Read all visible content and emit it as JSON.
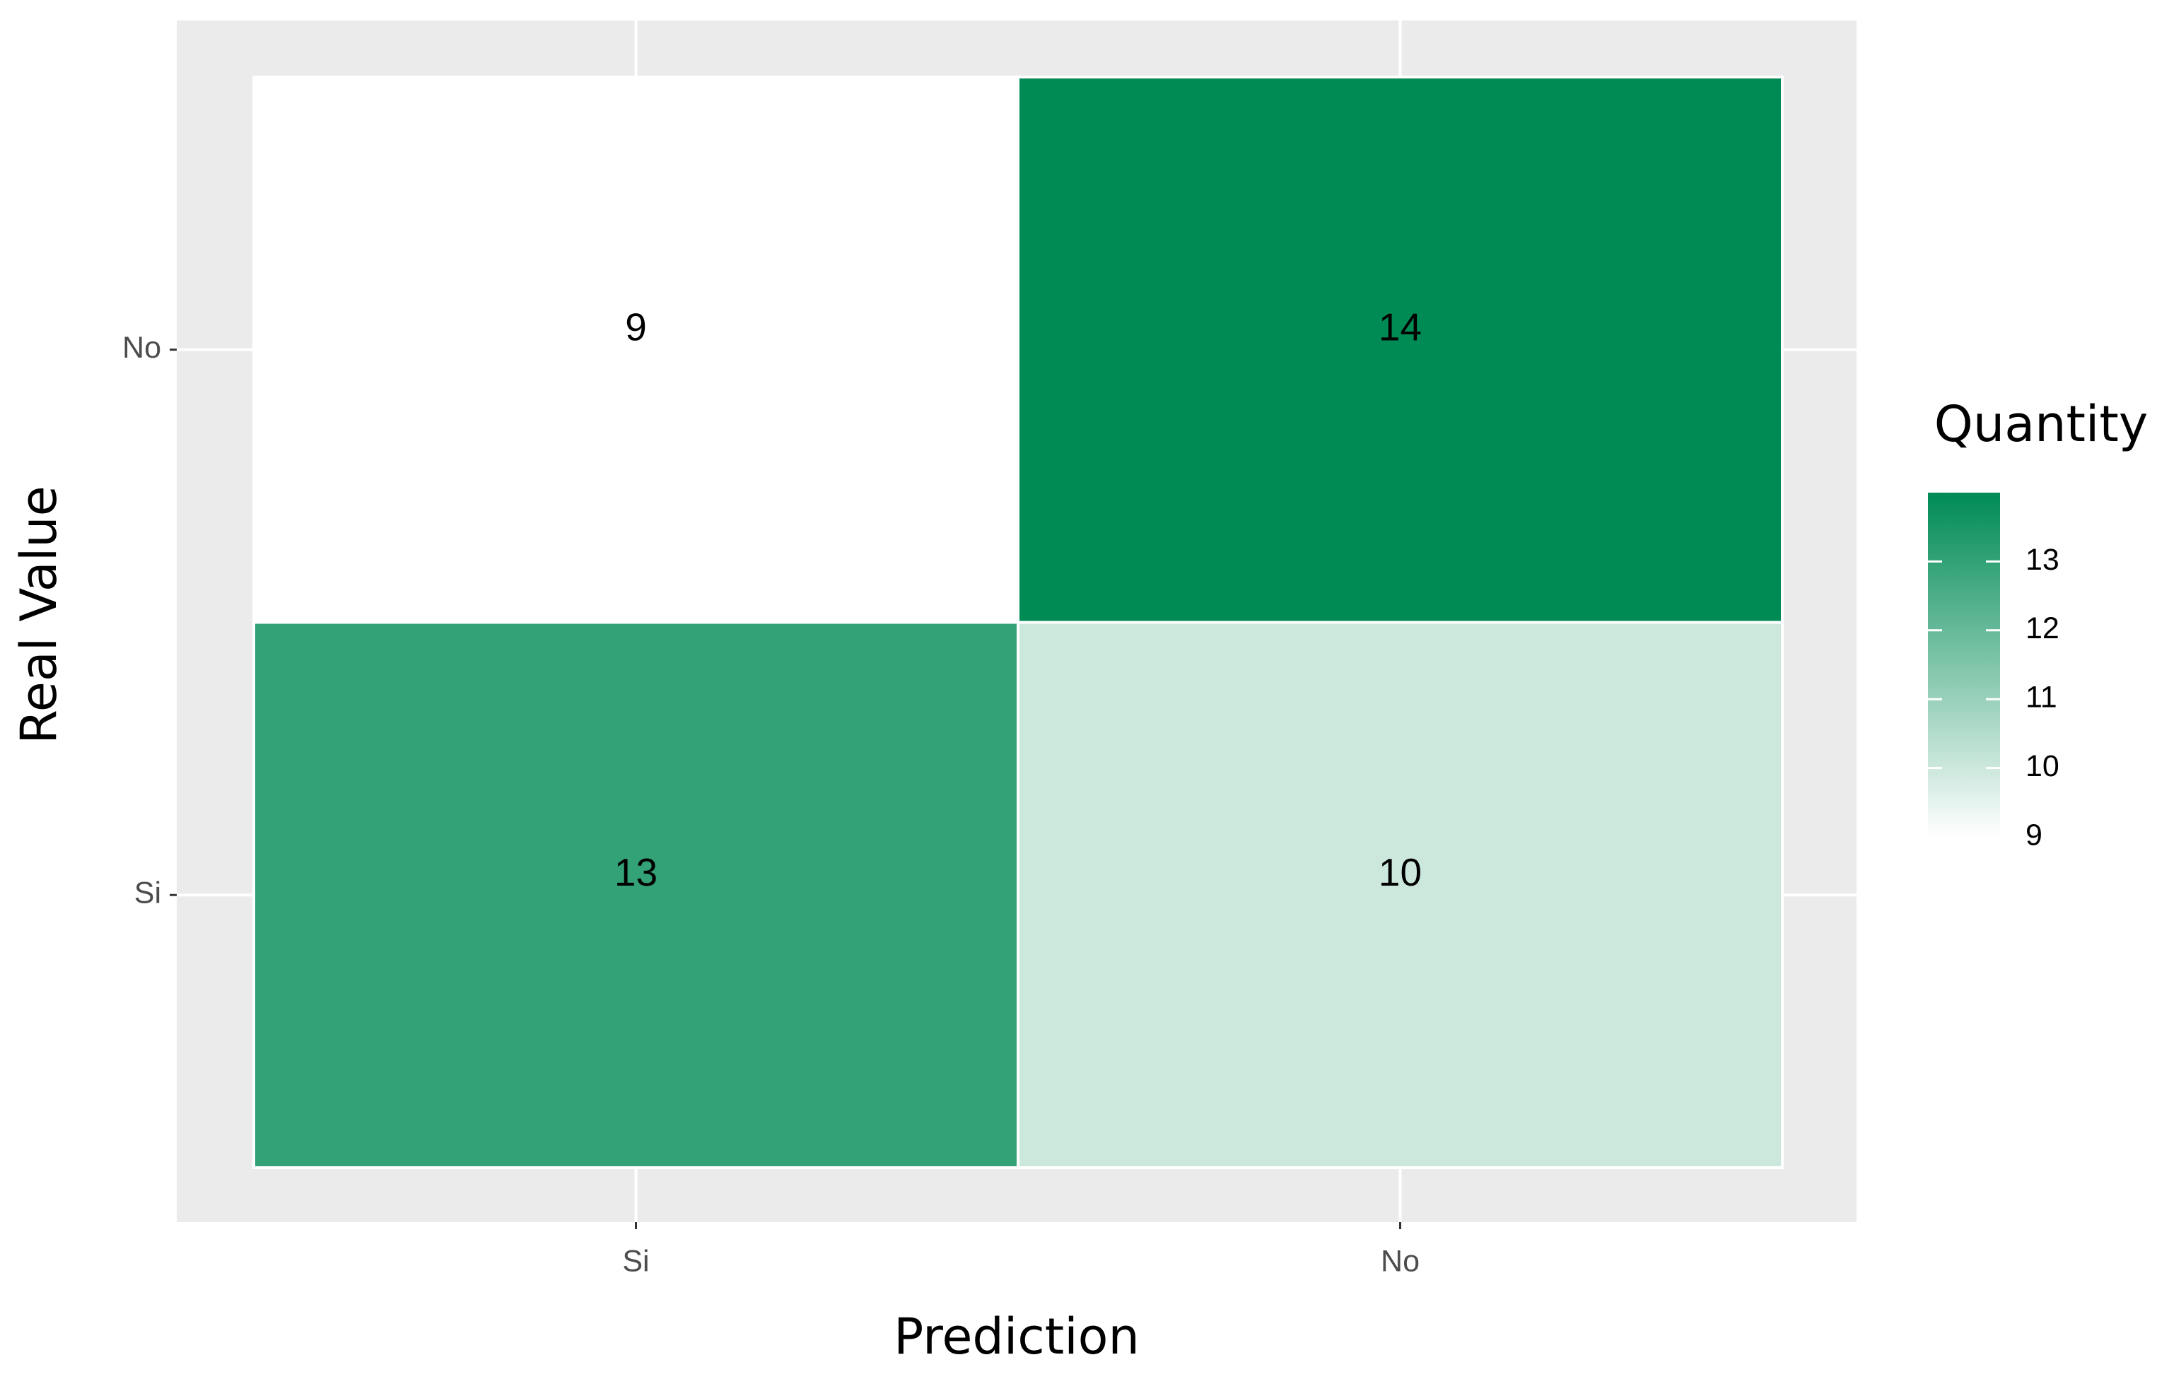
{
  "chart_data": {
    "type": "heatmap",
    "x_label": "Prediction",
    "y_label": "Real Value",
    "x_categories": [
      "Si",
      "No"
    ],
    "y_categories": [
      "Si",
      "No"
    ],
    "values": [
      [
        13,
        10
      ],
      [
        9,
        14
      ]
    ],
    "legend_title": "Quantity",
    "colorbar": {
      "lim": [
        9,
        14
      ],
      "ticks": [
        9,
        10,
        11,
        12,
        13
      ],
      "colors": [
        "#ffffff",
        "#008b55"
      ]
    },
    "grid": true
  }
}
